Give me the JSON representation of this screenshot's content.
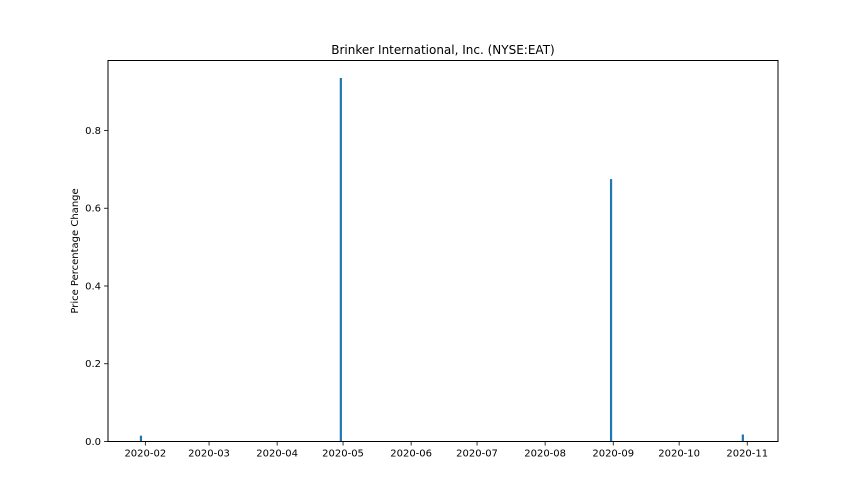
{
  "chart_data": {
    "type": "bar",
    "title": "Brinker International, Inc. (NYSE:EAT)",
    "xlabel": "",
    "ylabel": "Price Percentage Change",
    "x_axis_type": "date",
    "xlim": [
      "2020-01-15",
      "2020-11-15"
    ],
    "ylim": [
      0,
      0.98
    ],
    "x_ticks": [
      "2020-02",
      "2020-03",
      "2020-04",
      "2020-05",
      "2020-06",
      "2020-07",
      "2020-08",
      "2020-09",
      "2020-10",
      "2020-11"
    ],
    "y_ticks": [
      "0.0",
      "0.2",
      "0.4",
      "0.6",
      "0.8"
    ],
    "grid": false,
    "bar_color": "#1f77b4",
    "points": [
      {
        "date": "2020-01-30",
        "value": 0.015
      },
      {
        "date": "2020-04-30",
        "value": 0.935
      },
      {
        "date": "2020-08-31",
        "value": 0.675
      },
      {
        "date": "2020-10-30",
        "value": 0.018
      }
    ]
  }
}
